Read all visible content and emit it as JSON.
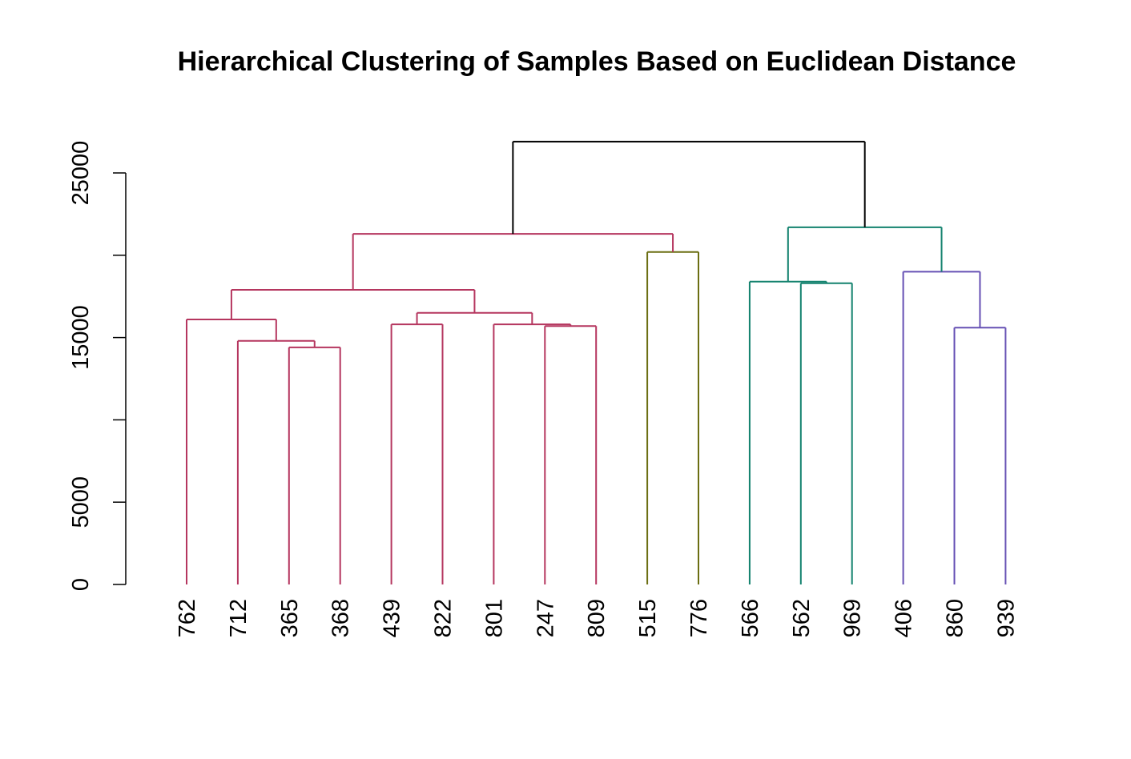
{
  "chart_data": {
    "type": "dendrogram",
    "title": "Hierarchical Clustering of Samples Based on Euclidean Distance",
    "xlabel": "",
    "ylabel": "",
    "ylim": [
      0,
      27000
    ],
    "y_ticks": [
      0,
      5000,
      10000,
      15000,
      20000,
      25000
    ],
    "y_tick_labels": [
      "0",
      "5000",
      "",
      "15000",
      "",
      "25000"
    ],
    "leaves": [
      "762",
      "712",
      "365",
      "368",
      "439",
      "822",
      "801",
      "247",
      "809",
      "515",
      "776",
      "566",
      "562",
      "969",
      "406",
      "860",
      "939"
    ],
    "cluster_colors": [
      "#b5365f",
      "#6b6e12",
      "#13826e",
      "#6650b4"
    ],
    "root_color": "#000000",
    "merges": [
      {
        "children": [
          "365",
          "368"
        ],
        "height": 14400,
        "color": "#b5365f"
      },
      {
        "children": [
          "712",
          "m1"
        ],
        "height": 14800,
        "color": "#b5365f"
      },
      {
        "children": [
          "762",
          "m2"
        ],
        "height": 16100,
        "color": "#b5365f"
      },
      {
        "children": [
          "439",
          "822"
        ],
        "height": 15800,
        "color": "#b5365f"
      },
      {
        "children": [
          "247",
          "809"
        ],
        "height": 15700,
        "color": "#b5365f"
      },
      {
        "children": [
          "801",
          "m5"
        ],
        "height": 15800,
        "color": "#b5365f"
      },
      {
        "children": [
          "m4",
          "m6"
        ],
        "height": 16500,
        "color": "#b5365f"
      },
      {
        "children": [
          "m3",
          "m7"
        ],
        "height": 17900,
        "color": "#b5365f"
      },
      {
        "children": [
          "515",
          "776"
        ],
        "height": 20200,
        "color": "#6b6e12"
      },
      {
        "children": [
          "m8",
          "m9"
        ],
        "height": 21300,
        "color": "#b5365f"
      },
      {
        "children": [
          "562",
          "969"
        ],
        "height": 18300,
        "color": "#13826e"
      },
      {
        "children": [
          "566",
          "m11"
        ],
        "height": 18400,
        "color": "#13826e"
      },
      {
        "children": [
          "860",
          "939"
        ],
        "height": 15600,
        "color": "#6650b4"
      },
      {
        "children": [
          "406",
          "m13"
        ],
        "height": 19000,
        "color": "#6650b4"
      },
      {
        "children": [
          "m12",
          "m14"
        ],
        "height": 21700,
        "color": "#13826e"
      },
      {
        "children": [
          "m10",
          "m15"
        ],
        "height": 26900,
        "color": "#000000"
      }
    ]
  }
}
